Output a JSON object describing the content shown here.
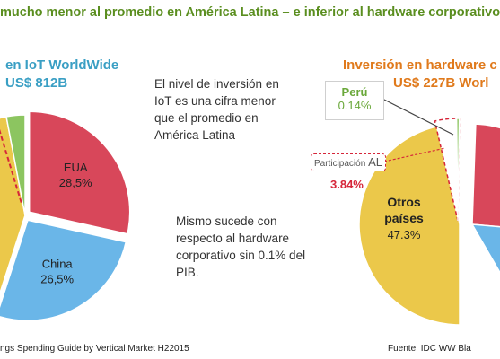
{
  "title": "mucho menor al promedio en América Latina – e inferior al hardware corporativo",
  "left": {
    "heading_line1": "en IoT WorldWide",
    "heading_line2": "US$ 812B",
    "note": "El nivel de inversión en IoT es una cifra menor que el promedio en América Latina",
    "source": "ngs Spending Guide by Vertical Market H22015"
  },
  "middle_note": "Mismo sucede con respecto al hardware corporativo sin 0.1% del PIB.",
  "right": {
    "heading_line1": "Inversión en hardware c",
    "heading_line2": "US$ 227B Worl",
    "peru_label": "Perú",
    "peru_value": "0.14%",
    "participacion_label": "Participación",
    "participacion_al": "AL",
    "participacion_value": "3.84%",
    "source": "Fuente: IDC WW Bla"
  },
  "colors": {
    "usa": "#d8475a",
    "china": "#6ab6e8",
    "others": "#ebc84a",
    "green": "#8cc560",
    "latam": "#ffffff",
    "highlight": "#d6263a"
  },
  "chart_data": [
    {
      "type": "pie",
      "title": "en IoT WorldWide US$ 812B",
      "slices": [
        {
          "label": "EUA",
          "value": 28.5,
          "display": "28,5%",
          "color": "#d8475a"
        },
        {
          "label": "China",
          "value": 26.5,
          "display": "26,5%",
          "color": "#6ab6e8"
        },
        {
          "label": "",
          "value": 42.0,
          "display": "",
          "color": "#ebc84a"
        },
        {
          "label": "",
          "value": 3.0,
          "display": "",
          "color": "#8cc560"
        }
      ]
    },
    {
      "type": "pie",
      "title": "Inversión en hardware c US$ 227B Worl",
      "slices": [
        {
          "label": "Otros países",
          "value": 47.3,
          "display": "47.3%",
          "color": "#ebc84a"
        },
        {
          "label": "Participación AL",
          "value": 3.84,
          "display": "3.84%",
          "color": "#ffffff"
        },
        {
          "label": "Perú",
          "value": 0.14,
          "display": "0.14%",
          "color": "#8cc560"
        }
      ]
    }
  ]
}
